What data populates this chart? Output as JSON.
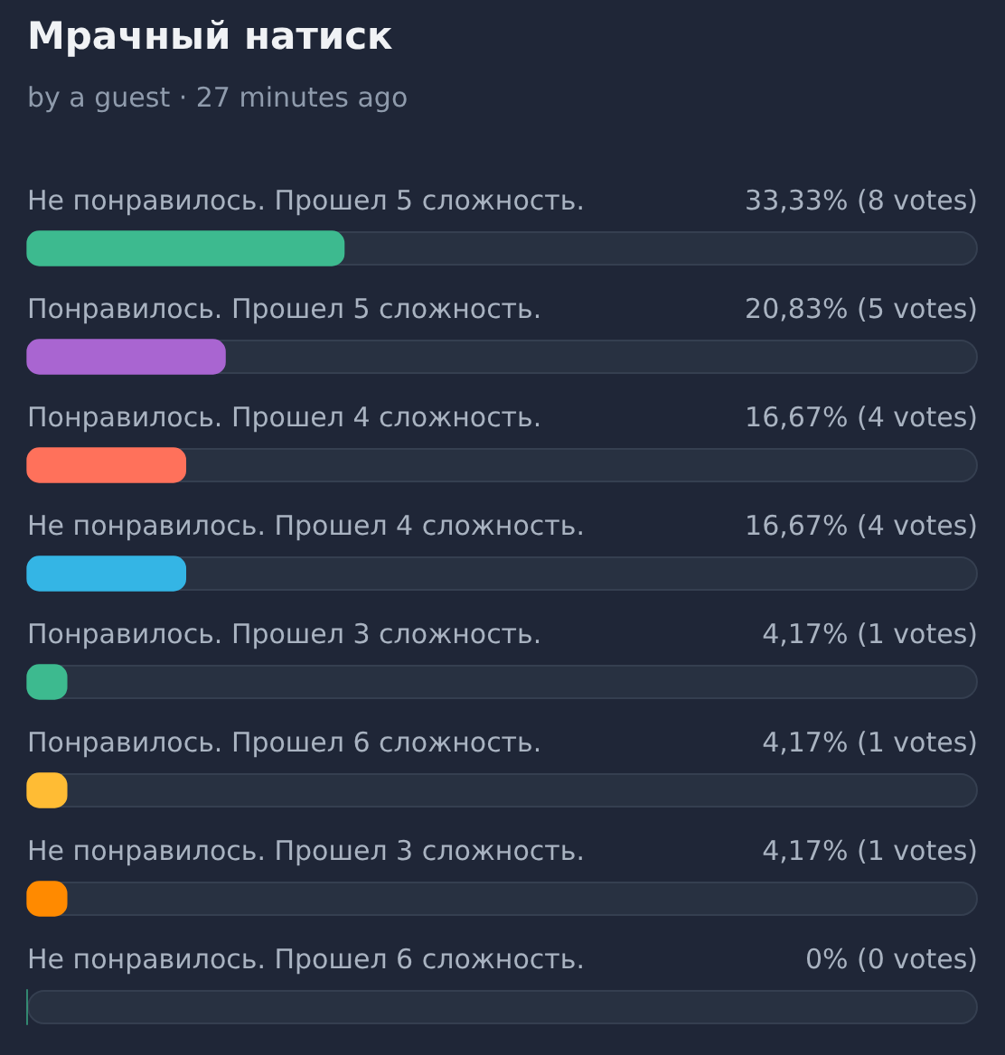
{
  "chart_data": {
    "type": "bar",
    "orientation": "horizontal",
    "title": "Мрачный натиск",
    "subtitle": "by a guest · 27 minutes ago",
    "categories": [
      "Не понравилось. Прошел 5 сложность.",
      "Понравилось. Прошел 5 сложность.",
      "Понравилось. Прошел 4 сложность.",
      "Не понравилось. Прошел 4 сложность.",
      "Понравилось. Прошел 3 сложность.",
      "Понравилось. Прошел 6 сложность.",
      "Не понравилось. Прошел 3 сложность.",
      "Не понравилось. Прошел 6 сложность."
    ],
    "values": [
      33.33,
      20.83,
      16.67,
      16.67,
      4.17,
      4.17,
      4.17,
      0
    ],
    "colors": [
      "#3dba8f",
      "#a965d1",
      "#ff715b",
      "#34b5e5",
      "#3dba8f",
      "#ffbc34",
      "#ff8a00",
      "#3dba8f"
    ],
    "value_labels": [
      "33,33% (8 votes)",
      "20,83% (5 votes)",
      "16,67% (4 votes)",
      "16,67% (4 votes)",
      "4,17% (1 votes)",
      "4,17% (1 votes)",
      "4,17% (1 votes)",
      "0% (0 votes)"
    ],
    "xlim": [
      0,
      100
    ],
    "tick_labels": "y"
  }
}
